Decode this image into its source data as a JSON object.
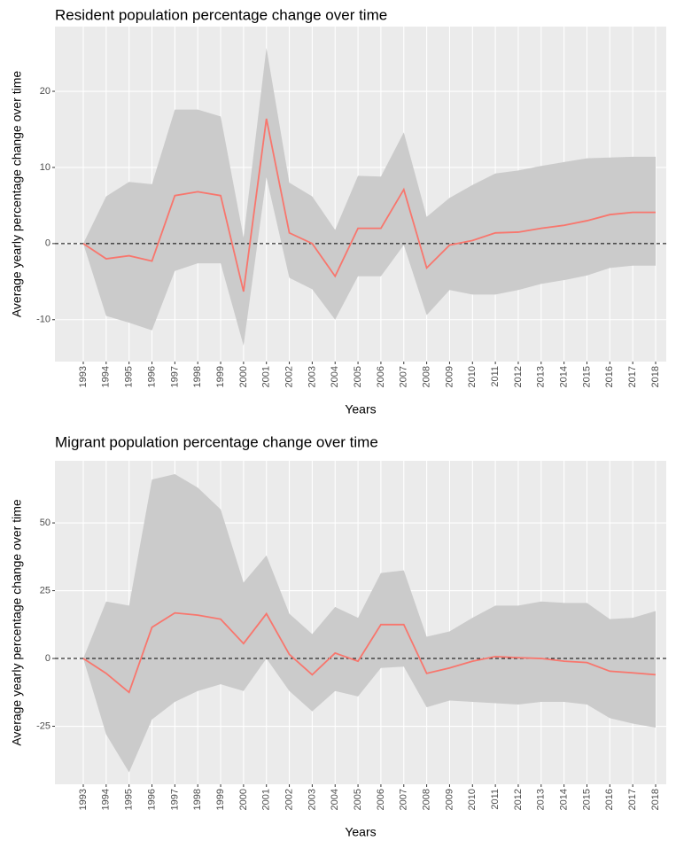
{
  "chart_data": [
    {
      "type": "line",
      "title": "Resident population percentage change over time",
      "x_label": "Years",
      "y_label": "Average yearly percentage change over time",
      "categories": [
        "1993",
        "1994",
        "1995",
        "1996",
        "1997",
        "1998",
        "1999",
        "2000",
        "2001",
        "2002",
        "2003",
        "2004",
        "2005",
        "2006",
        "2007",
        "2008",
        "2009",
        "2010",
        "2011",
        "2012",
        "2013",
        "2014",
        "2015",
        "2016",
        "2017",
        "2018"
      ],
      "values": [
        0,
        -2,
        -1.6,
        -2.3,
        6.3,
        6.8,
        6.3,
        -6.3,
        16.4,
        1.4,
        0,
        -4.3,
        2,
        2,
        7.1,
        -3.2,
        -0.2,
        0.4,
        1.4,
        1.5,
        2,
        2.4,
        3,
        3.8,
        4.1,
        4.1
      ],
      "upper": [
        0,
        6.2,
        8.1,
        7.8,
        17.6,
        17.6,
        16.7,
        0.8,
        25.7,
        8,
        6.2,
        1.8,
        8.9,
        8.8,
        14.6,
        3.5,
        6,
        7.7,
        9.2,
        9.6,
        10.2,
        10.7,
        11.2,
        11.3,
        11.4,
        11.4
      ],
      "lower": [
        0,
        -9.5,
        -10.4,
        -11.4,
        -3.6,
        -2.6,
        -2.6,
        -13.4,
        8.7,
        -4.5,
        -6,
        -10,
        -4.3,
        -4.3,
        -0.2,
        -9.4,
        -6.1,
        -6.7,
        -6.7,
        -6.1,
        -5.3,
        -4.8,
        -4.2,
        -3.2,
        -2.9,
        -2.9
      ],
      "color": "#f8766d",
      "band_color": "#cbcbcb",
      "reference_line": 0,
      "ylim": [
        -15.5,
        28.5
      ],
      "yticks": [
        -10,
        0,
        10,
        20
      ],
      "grid": true
    },
    {
      "type": "line",
      "title": "Migrant population percentage change over time",
      "x_label": "Years",
      "y_label": "Average yearly percentage change over time",
      "categories": [
        "1993",
        "1994",
        "1995",
        "1996",
        "1997",
        "1998",
        "1999",
        "2000",
        "2001",
        "2002",
        "2003",
        "2004",
        "2005",
        "2006",
        "2007",
        "2008",
        "2009",
        "2010",
        "2011",
        "2012",
        "2013",
        "2014",
        "2015",
        "2016",
        "2017",
        "2018"
      ],
      "values": [
        0,
        -5.5,
        -12.5,
        11.5,
        16.8,
        16,
        14.5,
        5.5,
        16.5,
        1.5,
        -6,
        2,
        -1,
        12.5,
        12.5,
        -5.5,
        -3.5,
        -1,
        0.7,
        0.3,
        0,
        -1,
        -1.5,
        -4.7,
        -5.3,
        -6
      ],
      "upper": [
        0,
        21,
        19.5,
        66,
        68,
        63,
        55,
        28,
        38,
        16.5,
        9,
        19,
        15,
        31.5,
        32.5,
        8,
        10,
        15,
        19.5,
        19.5,
        21,
        20.5,
        20.5,
        14.5,
        15,
        17.5
      ],
      "lower": [
        0,
        -28,
        -42,
        -22.5,
        -16,
        -12,
        -9.5,
        -12,
        0,
        -12,
        -19.5,
        -12,
        -14,
        -3.5,
        -3,
        -18,
        -15.5,
        -16,
        -16.5,
        -17,
        -16,
        -16,
        -17,
        -22,
        -24,
        -25.5
      ],
      "color": "#f8766d",
      "band_color": "#cbcbcb",
      "reference_line": 0,
      "ylim": [
        -46.4,
        72.9
      ],
      "yticks": [
        -25,
        0,
        25,
        50
      ],
      "grid": true
    }
  ]
}
